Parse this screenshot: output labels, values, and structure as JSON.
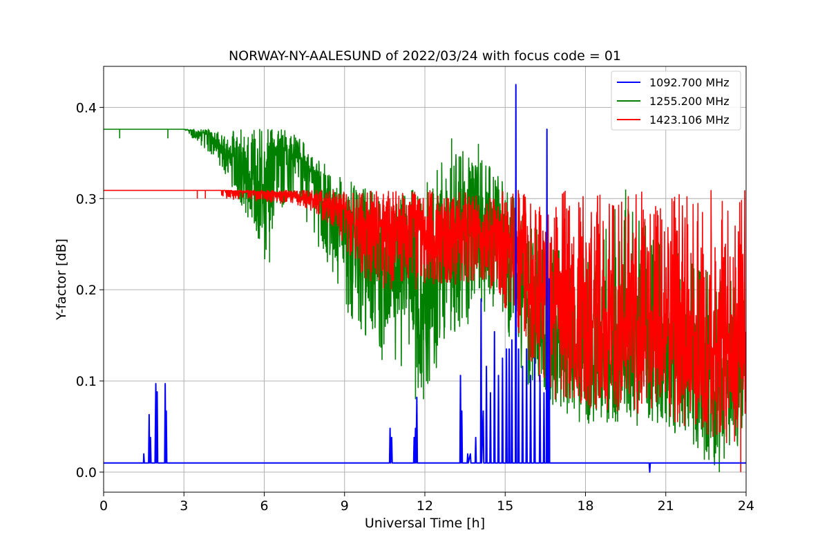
{
  "chart_data": {
    "type": "line",
    "title": "NORWAY-NY-AALESUND of 2022/03/24 with focus code = 01",
    "xlabel": "Universal Time [h]",
    "ylabel": "Y-factor [dB]",
    "xlim": [
      0,
      24
    ],
    "ylim": [
      -0.022,
      0.445
    ],
    "xticks": [
      0,
      3,
      6,
      9,
      12,
      15,
      18,
      21,
      24
    ],
    "yticks": [
      0.0,
      0.1,
      0.2,
      0.3,
      0.4
    ],
    "ytick_labels": [
      "0.0",
      "0.1",
      "0.2",
      "0.3",
      "0.4"
    ],
    "grid": true,
    "legend_position": "top-right",
    "series": [
      {
        "name": "1092.700 MHz",
        "color": "#0000ff",
        "baseline": 0.01,
        "points": [
          [
            0,
            0.01
          ],
          [
            1.49,
            0.01
          ],
          [
            1.5,
            0.02
          ],
          [
            1.52,
            0.01
          ],
          [
            1.68,
            0.01
          ],
          [
            1.7,
            0.063
          ],
          [
            1.72,
            0.01
          ],
          [
            1.75,
            0.038
          ],
          [
            1.77,
            0.01
          ],
          [
            1.92,
            0.01
          ],
          [
            1.95,
            0.097
          ],
          [
            1.97,
            0.01
          ],
          [
            2.0,
            0.088
          ],
          [
            2.02,
            0.01
          ],
          [
            2.28,
            0.01
          ],
          [
            2.3,
            0.097
          ],
          [
            2.32,
            0.01
          ],
          [
            2.34,
            0.067
          ],
          [
            2.36,
            0.01
          ],
          [
            10.68,
            0.01
          ],
          [
            10.7,
            0.048
          ],
          [
            10.72,
            0.01
          ],
          [
            10.76,
            0.038
          ],
          [
            10.78,
            0.01
          ],
          [
            11.58,
            0.01
          ],
          [
            11.6,
            0.038
          ],
          [
            11.62,
            0.01
          ],
          [
            11.65,
            0.048
          ],
          [
            11.67,
            0.01
          ],
          [
            11.7,
            0.082
          ],
          [
            11.72,
            0.01
          ],
          [
            13.31,
            0.01
          ],
          [
            13.33,
            0.106
          ],
          [
            13.35,
            0.01
          ],
          [
            13.38,
            0.067
          ],
          [
            13.4,
            0.01
          ],
          [
            13.58,
            0.01
          ],
          [
            13.6,
            0.02
          ],
          [
            13.62,
            0.01
          ],
          [
            13.7,
            0.02
          ],
          [
            13.72,
            0.01
          ],
          [
            13.88,
            0.01
          ],
          [
            13.9,
            0.038
          ],
          [
            13.92,
            0.01
          ],
          [
            14.08,
            0.01
          ],
          [
            14.1,
            0.19
          ],
          [
            14.12,
            0.01
          ],
          [
            14.18,
            0.067
          ],
          [
            14.2,
            0.01
          ],
          [
            14.28,
            0.01
          ],
          [
            14.3,
            0.116
          ],
          [
            14.32,
            0.01
          ],
          [
            14.43,
            0.01
          ],
          [
            14.45,
            0.087
          ],
          [
            14.47,
            0.01
          ],
          [
            14.58,
            0.01
          ],
          [
            14.6,
            0.154
          ],
          [
            14.62,
            0.01
          ],
          [
            14.73,
            0.01
          ],
          [
            14.75,
            0.106
          ],
          [
            14.77,
            0.01
          ],
          [
            14.88,
            0.01
          ],
          [
            14.9,
            0.125
          ],
          [
            14.92,
            0.01
          ],
          [
            15.03,
            0.01
          ],
          [
            15.05,
            0.135
          ],
          [
            15.07,
            0.01
          ],
          [
            15.13,
            0.01
          ],
          [
            15.15,
            0.135
          ],
          [
            15.17,
            0.01
          ],
          [
            15.23,
            0.01
          ],
          [
            15.25,
            0.145
          ],
          [
            15.27,
            0.01
          ],
          [
            15.38,
            0.01
          ],
          [
            15.4,
            0.425
          ],
          [
            15.42,
            0.01
          ],
          [
            15.48,
            0.01
          ],
          [
            15.5,
            0.135
          ],
          [
            15.52,
            0.01
          ],
          [
            15.63,
            0.01
          ],
          [
            15.65,
            0.116
          ],
          [
            15.67,
            0.01
          ],
          [
            15.78,
            0.01
          ],
          [
            15.8,
            0.135
          ],
          [
            15.82,
            0.01
          ],
          [
            15.93,
            0.01
          ],
          [
            15.95,
            0.106
          ],
          [
            15.97,
            0.01
          ],
          [
            16.08,
            0.01
          ],
          [
            16.1,
            0.125
          ],
          [
            16.12,
            0.01
          ],
          [
            16.28,
            0.01
          ],
          [
            16.3,
            0.106
          ],
          [
            16.32,
            0.01
          ],
          [
            16.43,
            0.01
          ],
          [
            16.45,
            0.087
          ],
          [
            16.47,
            0.01
          ],
          [
            16.54,
            0.01
          ],
          [
            16.56,
            0.376
          ],
          [
            16.58,
            0.01
          ],
          [
            16.62,
            0.01
          ],
          [
            16.64,
            0.212
          ],
          [
            16.66,
            0.01
          ],
          [
            20.38,
            0.01
          ],
          [
            20.4,
            0.0
          ],
          [
            20.42,
            0.01
          ],
          [
            24,
            0.01
          ]
        ]
      },
      {
        "name": "1255.200 MHz",
        "color": "#008000",
        "trend": [
          [
            0,
            0.376
          ],
          [
            3.0,
            0.376
          ],
          [
            4.0,
            0.37
          ],
          [
            5.0,
            0.34
          ],
          [
            6.0,
            0.3
          ],
          [
            6.5,
            0.36
          ],
          [
            7.5,
            0.34
          ],
          [
            9.0,
            0.27
          ],
          [
            10.5,
            0.22
          ],
          [
            11.5,
            0.2
          ],
          [
            12.5,
            0.21
          ],
          [
            13.5,
            0.26
          ],
          [
            14.5,
            0.28
          ],
          [
            15.5,
            0.2
          ],
          [
            16.5,
            0.15
          ],
          [
            18.0,
            0.12
          ],
          [
            21.0,
            0.13
          ],
          [
            24.0,
            0.1
          ]
        ],
        "upper": [
          [
            0,
            0.376
          ],
          [
            1.0,
            0.376
          ],
          [
            3.0,
            0.376
          ],
          [
            4.0,
            0.376
          ],
          [
            5.0,
            0.376
          ],
          [
            6.0,
            0.376
          ],
          [
            7.0,
            0.376
          ],
          [
            8.5,
            0.33
          ],
          [
            10.5,
            0.3
          ],
          [
            12.0,
            0.32
          ],
          [
            13.0,
            0.36
          ],
          [
            14.5,
            0.34
          ],
          [
            16.0,
            0.27
          ],
          [
            18.0,
            0.24
          ],
          [
            19.5,
            0.31
          ],
          [
            21.0,
            0.25
          ],
          [
            24.0,
            0.2
          ]
        ],
        "lower": [
          [
            0,
            0.376
          ],
          [
            3.0,
            0.376
          ],
          [
            3.5,
            0.36
          ],
          [
            4.5,
            0.33
          ],
          [
            5.5,
            0.27
          ],
          [
            6.0,
            0.23
          ],
          [
            6.5,
            0.29
          ],
          [
            7.5,
            0.28
          ],
          [
            9.0,
            0.18
          ],
          [
            10.0,
            0.14
          ],
          [
            11.0,
            0.12
          ],
          [
            12.0,
            0.08
          ],
          [
            13.0,
            0.15
          ],
          [
            14.5,
            0.18
          ],
          [
            16.0,
            0.08
          ],
          [
            18.0,
            0.05
          ],
          [
            21.0,
            0.05
          ],
          [
            23.0,
            0.0
          ],
          [
            24.0,
            0.02
          ]
        ],
        "spikes": [
          [
            0.6,
            0.366
          ],
          [
            2.4,
            0.366
          ],
          [
            13.0,
            0.366
          ],
          [
            14.0,
            0.36
          ],
          [
            19.5,
            0.31
          ],
          [
            11.65,
            0.08
          ],
          [
            11.95,
            0.08
          ],
          [
            23.0,
            0.0
          ],
          [
            6.2,
            0.23
          ],
          [
            10.4,
            0.123
          ]
        ]
      },
      {
        "name": "1423.106 MHz",
        "color": "#ff0000",
        "trend": [
          [
            0,
            0.309
          ],
          [
            4.5,
            0.309
          ],
          [
            7.0,
            0.305
          ],
          [
            8.5,
            0.295
          ],
          [
            10.0,
            0.27
          ],
          [
            12.0,
            0.265
          ],
          [
            14.0,
            0.265
          ],
          [
            15.0,
            0.26
          ],
          [
            16.0,
            0.22
          ],
          [
            17.0,
            0.185
          ],
          [
            19.0,
            0.165
          ],
          [
            21.0,
            0.15
          ],
          [
            23.0,
            0.135
          ],
          [
            24.0,
            0.12
          ]
        ],
        "upper": [
          [
            0,
            0.309
          ],
          [
            24.0,
            0.309
          ]
        ],
        "lower": [
          [
            0,
            0.309
          ],
          [
            3.5,
            0.309
          ],
          [
            4.5,
            0.3
          ],
          [
            6.5,
            0.295
          ],
          [
            7.5,
            0.29
          ],
          [
            8.5,
            0.27
          ],
          [
            10.0,
            0.2
          ],
          [
            12.0,
            0.2
          ],
          [
            14.0,
            0.21
          ],
          [
            15.0,
            0.18
          ],
          [
            16.5,
            0.08
          ],
          [
            18.0,
            0.07
          ],
          [
            21.0,
            0.06
          ],
          [
            23.0,
            0.03
          ],
          [
            24.0,
            0.02
          ]
        ],
        "spikes": [
          [
            3.5,
            0.3
          ],
          [
            3.8,
            0.3
          ],
          [
            15.5,
            0.3
          ],
          [
            19.5,
            0.28
          ],
          [
            23.8,
            0.0
          ],
          [
            20.1,
            0.075
          ]
        ]
      }
    ]
  }
}
